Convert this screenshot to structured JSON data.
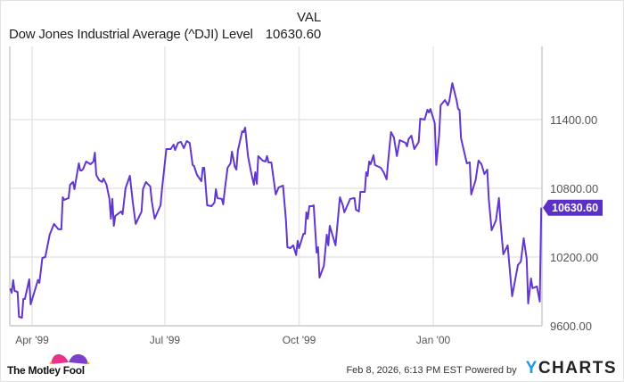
{
  "header": {
    "col_label": "VAL",
    "series_name": "Dow Jones Industrial Average (^DJI) Level",
    "series_value": "10630.60"
  },
  "footer": {
    "timestamp": "Feb 8, 2026, 6:13 PM EST",
    "powered_by": "Powered by",
    "brand": "YCHARTS",
    "logo_text": "The Motley Fool"
  },
  "colors": {
    "line": "#6236d0",
    "tag": "#5b30c8",
    "grid": "#e6e6e6",
    "axis": "#cccccc"
  },
  "chart_data": {
    "type": "line",
    "title": "Dow Jones Industrial Average (^DJI) Level",
    "x_unit": "days since 1999-04-01",
    "xlim": [
      -15.3,
      349.5
    ],
    "ylim": [
      9600,
      12000
    ],
    "grid": true,
    "x_ticks": [
      {
        "value": 0,
        "label": "Apr '99"
      },
      {
        "value": 91,
        "label": "Jul '99"
      },
      {
        "value": 183,
        "label": "Oct '99"
      },
      {
        "value": 275,
        "label": "Jan '00"
      }
    ],
    "y_ticks": [
      {
        "value": 9600,
        "label": "9600.00"
      },
      {
        "value": 10200,
        "label": "10200.00"
      },
      {
        "value": 10800,
        "label": "10800.00"
      },
      {
        "value": 11400,
        "label": "11400.00"
      }
    ],
    "last_value": {
      "value": 10630.6,
      "label": "10630.60"
    },
    "series": [
      {
        "name": "Dow Jones Industrial Average (^DJI) Level",
        "points": [
          [
            -15,
            9925
          ],
          [
            -14,
            9888
          ],
          [
            -13,
            9998
          ],
          [
            -12,
            9904
          ],
          [
            -10,
            9896
          ],
          [
            -9,
            9678
          ],
          [
            -7,
            9670
          ],
          [
            -6,
            9834
          ],
          [
            -5,
            9834
          ],
          [
            -2,
            10006
          ],
          [
            -1,
            9787
          ],
          [
            4,
            10000
          ],
          [
            5,
            9975
          ],
          [
            7,
            10192
          ],
          [
            9,
            10200
          ],
          [
            12,
            10395
          ],
          [
            15,
            10489
          ],
          [
            18,
            10442
          ],
          [
            20,
            10442
          ],
          [
            21,
            10722
          ],
          [
            22,
            10699
          ],
          [
            25,
            10715
          ],
          [
            26,
            10831
          ],
          [
            28,
            10855
          ],
          [
            29,
            10792
          ],
          [
            32,
            11018
          ],
          [
            33,
            10956
          ],
          [
            34,
            10956
          ],
          [
            35,
            10971
          ],
          [
            37,
            11034
          ],
          [
            39,
            11018
          ],
          [
            40,
            11010
          ],
          [
            42,
            11034
          ],
          [
            43,
            11112
          ],
          [
            44,
            10917
          ],
          [
            46,
            10870
          ],
          [
            48,
            10855
          ],
          [
            49,
            10886
          ],
          [
            51,
            10831
          ],
          [
            53,
            10707
          ],
          [
            54,
            10535
          ],
          [
            55,
            10707
          ],
          [
            56,
            10473
          ],
          [
            57,
            10559
          ],
          [
            61,
            10598
          ],
          [
            62,
            10574
          ],
          [
            64,
            10800
          ],
          [
            67,
            10909
          ],
          [
            69,
            10676
          ],
          [
            71,
            10489
          ],
          [
            75,
            10598
          ],
          [
            76,
            10792
          ],
          [
            78,
            10855
          ],
          [
            81,
            10816
          ],
          [
            82,
            10691
          ],
          [
            84,
            10535
          ],
          [
            88,
            10652
          ],
          [
            89,
            10792
          ],
          [
            92,
            11143
          ],
          [
            95,
            11143
          ],
          [
            97,
            11182
          ],
          [
            98,
            11135
          ],
          [
            100,
            11197
          ],
          [
            102,
            11205
          ],
          [
            104,
            11151
          ],
          [
            106,
            11213
          ],
          [
            108,
            11197
          ],
          [
            110,
            11003
          ],
          [
            111,
            10995
          ],
          [
            113,
            10917
          ],
          [
            116,
            10862
          ],
          [
            117,
            10979
          ],
          [
            118,
            10979
          ],
          [
            120,
            10652
          ],
          [
            123,
            10644
          ],
          [
            125,
            10676
          ],
          [
            126,
            10792
          ],
          [
            127,
            10715
          ],
          [
            130,
            10707
          ],
          [
            131,
            10660
          ],
          [
            132,
            10784
          ],
          [
            134,
            10979
          ],
          [
            136,
            11018
          ],
          [
            137,
            11120
          ],
          [
            139,
            10987
          ],
          [
            140,
            10964
          ],
          [
            141,
            11127
          ],
          [
            144,
            11299
          ],
          [
            145,
            11291
          ],
          [
            146,
            11330
          ],
          [
            148,
            11081
          ],
          [
            150,
            10948
          ],
          [
            152,
            10831
          ],
          [
            153,
            10940
          ],
          [
            154,
            10839
          ],
          [
            155,
            11081
          ],
          [
            158,
            11042
          ],
          [
            160,
            11034
          ],
          [
            161,
            11081
          ],
          [
            162,
            11026
          ],
          [
            164,
            11026
          ],
          [
            167,
            10746
          ],
          [
            169,
            10808
          ],
          [
            172,
            10824
          ],
          [
            174,
            10520
          ],
          [
            175,
            10286
          ],
          [
            177,
            10278
          ],
          [
            179,
            10302
          ],
          [
            181,
            10216
          ],
          [
            182,
            10341
          ],
          [
            183,
            10278
          ],
          [
            186,
            10403
          ],
          [
            187,
            10403
          ],
          [
            188,
            10590
          ],
          [
            189,
            10535
          ],
          [
            190,
            10644
          ],
          [
            192,
            10644
          ],
          [
            193,
            10652
          ],
          [
            195,
            10239
          ],
          [
            196,
            10286
          ],
          [
            197,
            10021
          ],
          [
            200,
            10122
          ],
          [
            202,
            10395
          ],
          [
            203,
            10302
          ],
          [
            204,
            10473
          ],
          [
            208,
            10302
          ],
          [
            211,
            10722
          ],
          [
            213,
            10652
          ],
          [
            214,
            10590
          ],
          [
            218,
            10707
          ],
          [
            221,
            10715
          ],
          [
            222,
            10613
          ],
          [
            224,
            10598
          ],
          [
            225,
            10769
          ],
          [
            228,
            10769
          ],
          [
            229,
            10940
          ],
          [
            230,
            10909
          ],
          [
            231,
            11034
          ],
          [
            232,
            11010
          ],
          [
            234,
            11088
          ],
          [
            235,
            11003
          ],
          [
            239,
            10979
          ],
          [
            241,
            10940
          ],
          [
            243,
            10878
          ],
          [
            244,
            11026
          ],
          [
            246,
            11291
          ],
          [
            248,
            11244
          ],
          [
            250,
            11081
          ],
          [
            252,
            11221
          ],
          [
            256,
            11197
          ],
          [
            257,
            11166
          ],
          [
            258,
            11229
          ],
          [
            260,
            11260
          ],
          [
            262,
            11143
          ],
          [
            265,
            11205
          ],
          [
            266,
            11408
          ],
          [
            269,
            11400
          ],
          [
            271,
            11486
          ],
          [
            272,
            11462
          ],
          [
            273,
            11493
          ],
          [
            276,
            11369
          ],
          [
            277,
            11003
          ],
          [
            279,
            11260
          ],
          [
            280,
            11525
          ],
          [
            283,
            11571
          ],
          [
            285,
            11525
          ],
          [
            286,
            11564
          ],
          [
            288,
            11719
          ],
          [
            291,
            11564
          ],
          [
            292,
            11493
          ],
          [
            293,
            11486
          ],
          [
            294,
            11236
          ],
          [
            298,
            11018
          ],
          [
            300,
            11026
          ],
          [
            301,
            10746
          ],
          [
            304,
            10870
          ],
          [
            306,
            11042
          ],
          [
            308,
            11010
          ],
          [
            310,
            10925
          ],
          [
            312,
            10964
          ],
          [
            313,
            10707
          ],
          [
            315,
            10434
          ],
          [
            318,
            10520
          ],
          [
            320,
            10715
          ],
          [
            321,
            10512
          ],
          [
            323,
            10224
          ],
          [
            326,
            10302
          ],
          [
            329,
            9858
          ],
          [
            333,
            10130
          ],
          [
            335,
            10161
          ],
          [
            337,
            10364
          ],
          [
            339,
            10185
          ],
          [
            340,
            9795
          ],
          [
            342,
            10013
          ],
          [
            343,
            9928
          ],
          [
            346,
            9944
          ],
          [
            348,
            9811
          ],
          [
            349,
            10630.6
          ]
        ]
      }
    ]
  }
}
